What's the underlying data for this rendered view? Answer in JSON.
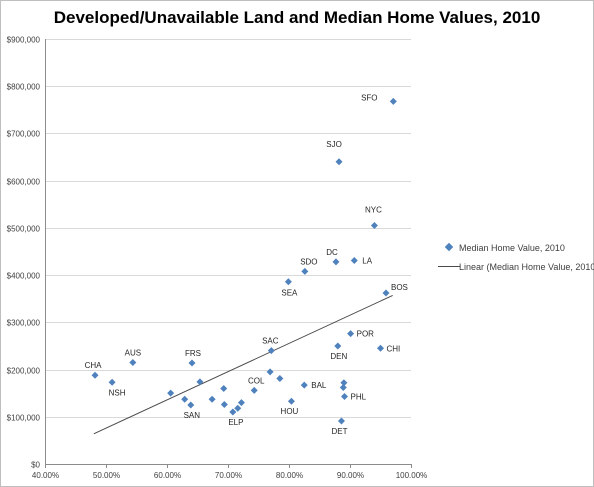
{
  "chart_data": {
    "type": "scatter",
    "title": "Developed/Unavailable Land and Median Home Values, 2010",
    "xlabel": "",
    "ylabel": "",
    "xlim": [
      0.4,
      1.0
    ],
    "ylim": [
      0,
      900000
    ],
    "x_ticks": [
      "40.00%",
      "50.00%",
      "60.00%",
      "70.00%",
      "80.00%",
      "90.00%",
      "100.00%"
    ],
    "y_ticks": [
      "$0",
      "$100,000",
      "$200,000",
      "$300,000",
      "$400,000",
      "$500,000",
      "$600,000",
      "$700,000",
      "$800,000",
      "$900,000"
    ],
    "grid": "horizontal",
    "marker_color": "#4f81bd",
    "trendline_color": "#4a4a4a",
    "legend": {
      "position": "right",
      "entries": [
        "Median Home Value, 2010",
        "Linear (Median Home Value, 2010)"
      ]
    },
    "series": [
      {
        "name": "Median Home Value, 2010",
        "points": [
          {
            "x": 0.482,
            "y": 188000,
            "label": "CHA"
          },
          {
            "x": 0.51,
            "y": 173000,
            "label": "NSH"
          },
          {
            "x": 0.544,
            "y": 215000,
            "label": "AUS"
          },
          {
            "x": 0.606,
            "y": 150000
          },
          {
            "x": 0.629,
            "y": 137000
          },
          {
            "x": 0.639,
            "y": 125000,
            "label": "SAN"
          },
          {
            "x": 0.641,
            "y": 214000,
            "label": "FRS"
          },
          {
            "x": 0.654,
            "y": 174000
          },
          {
            "x": 0.674,
            "y": 137000
          },
          {
            "x": 0.693,
            "y": 160000
          },
          {
            "x": 0.694,
            "y": 126000
          },
          {
            "x": 0.708,
            "y": 110000,
            "label": "ELP"
          },
          {
            "x": 0.716,
            "y": 118000
          },
          {
            "x": 0.722,
            "y": 130000
          },
          {
            "x": 0.743,
            "y": 156000,
            "label": "COL"
          },
          {
            "x": 0.769,
            "y": 195000
          },
          {
            "x": 0.771,
            "y": 240000,
            "label": "SAC"
          },
          {
            "x": 0.785,
            "y": 181000
          },
          {
            "x": 0.799,
            "y": 386000,
            "label": "SEA"
          },
          {
            "x": 0.804,
            "y": 133000,
            "label": "HOU"
          },
          {
            "x": 0.825,
            "y": 167000,
            "label": "BAL"
          },
          {
            "x": 0.826,
            "y": 408000,
            "label": "SDO"
          },
          {
            "x": 0.877,
            "y": 428000,
            "label": "DC"
          },
          {
            "x": 0.88,
            "y": 250000,
            "label": "DEN"
          },
          {
            "x": 0.882,
            "y": 640000,
            "label": "SJO"
          },
          {
            "x": 0.886,
            "y": 91000,
            "label": "DET"
          },
          {
            "x": 0.889,
            "y": 162000
          },
          {
            "x": 0.89,
            "y": 172000
          },
          {
            "x": 0.891,
            "y": 143000,
            "label": "PHL"
          },
          {
            "x": 0.901,
            "y": 276000,
            "label": "POR"
          },
          {
            "x": 0.907,
            "y": 431000,
            "label": "LA"
          },
          {
            "x": 0.94,
            "y": 505000,
            "label": "NYC"
          },
          {
            "x": 0.95,
            "y": 245000,
            "label": "CHI"
          },
          {
            "x": 0.959,
            "y": 362000,
            "label": "BOS"
          },
          {
            "x": 0.971,
            "y": 768000,
            "label": "SFO"
          }
        ]
      }
    ],
    "trendline": {
      "type": "linear",
      "name": "Linear (Median Home Value, 2010)",
      "x0": 0.48,
      "y0": 64000,
      "x1": 0.97,
      "y1": 357000
    }
  }
}
